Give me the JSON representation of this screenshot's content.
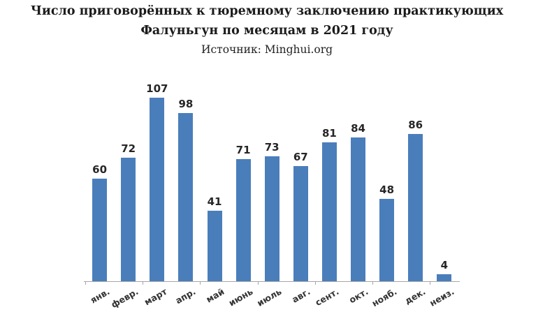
{
  "header": {
    "title_line1": "Число приговорённых к тюремному заключению практикующих",
    "title_line2": "Фалуньгун по месяцам в 2021 году",
    "source": "Источник: Minghui.org"
  },
  "chart_data": {
    "type": "bar",
    "title": "Число приговорённых к тюремному заключению практикующих Фалуньгун по месяцам в 2021 году",
    "subtitle": "Источник: Minghui.org",
    "categories": [
      "янв.",
      "февр.",
      "март",
      "апр.",
      "май",
      "июнь",
      "июль",
      "авг.",
      "сент.",
      "окт.",
      "нояб.",
      "дек.",
      "неиз."
    ],
    "values": [
      60,
      72,
      107,
      98,
      41,
      71,
      73,
      67,
      81,
      84,
      48,
      86,
      4
    ],
    "xlabel": "",
    "ylabel": "",
    "ylim": [
      0,
      110
    ],
    "grid": false,
    "legend": "none",
    "data_labels": true,
    "bar_color": "#4a7ebb",
    "axis_color": "#a6a6a6",
    "value_label_color": "#262626",
    "category_label_color": "#333333",
    "x_tick_interval": 2
  }
}
